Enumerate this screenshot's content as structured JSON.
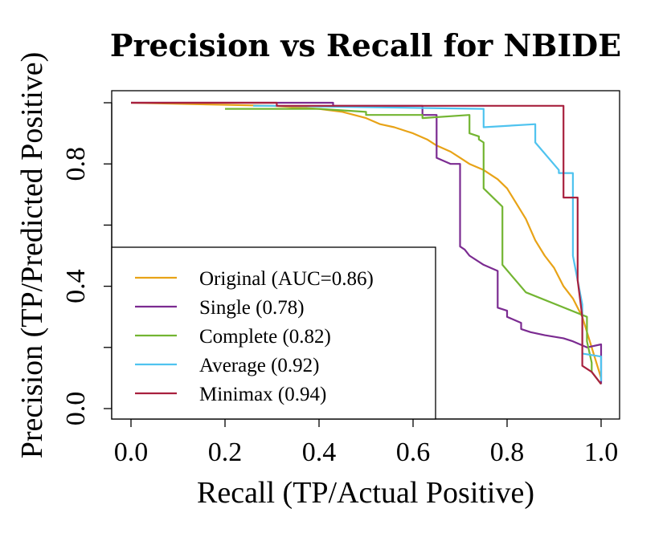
{
  "chart_data": {
    "type": "line",
    "title": "Precision vs Recall for NBIDE",
    "xlabel": "Recall (TP/Actual Positive)",
    "ylabel": "Precision (TP/Predicted Positive)",
    "xlim": [
      0.0,
      1.0
    ],
    "ylim": [
      0.0,
      1.0
    ],
    "x_ticks": [
      0.0,
      0.2,
      0.4,
      0.6,
      0.8,
      1.0
    ],
    "x_tick_labels": [
      "0.0",
      "0.2",
      "0.4",
      "0.6",
      "0.8",
      "1.0"
    ],
    "y_ticks": [
      0.0,
      0.2,
      0.4,
      0.6,
      0.8,
      1.0
    ],
    "y_tick_labels": [
      "0.0",
      "",
      "0.4",
      "",
      "0.8",
      ""
    ],
    "grid": false,
    "legend_position": "bottom-left",
    "series": [
      {
        "name": "Original (AUC=0.86)",
        "color": "#e8a317",
        "x": [
          0.0,
          0.3,
          0.4,
          0.45,
          0.5,
          0.53,
          0.56,
          0.6,
          0.63,
          0.65,
          0.68,
          0.7,
          0.72,
          0.75,
          0.78,
          0.8,
          0.82,
          0.84,
          0.86,
          0.88,
          0.9,
          0.92,
          0.94,
          0.96,
          0.98,
          1.0
        ],
        "y": [
          1.0,
          0.99,
          0.98,
          0.97,
          0.95,
          0.93,
          0.92,
          0.9,
          0.88,
          0.86,
          0.84,
          0.82,
          0.8,
          0.78,
          0.75,
          0.72,
          0.67,
          0.62,
          0.55,
          0.5,
          0.46,
          0.4,
          0.36,
          0.3,
          0.2,
          0.1
        ]
      },
      {
        "name": "Single (0.78)",
        "color": "#7b2b91",
        "x": [
          0.0,
          0.43,
          0.43,
          0.62,
          0.62,
          0.65,
          0.65,
          0.65,
          0.68,
          0.68,
          0.7,
          0.7,
          0.71,
          0.71,
          0.72,
          0.72,
          0.75,
          0.75,
          0.78,
          0.78,
          0.8,
          0.8,
          0.83,
          0.83,
          0.85,
          0.85,
          0.88,
          0.88,
          0.92,
          0.92,
          0.94,
          0.94,
          0.97,
          0.97,
          1.0,
          1.0
        ],
        "y": [
          1.0,
          1.0,
          0.99,
          0.99,
          0.96,
          0.96,
          0.93,
          0.82,
          0.8,
          0.8,
          0.8,
          0.53,
          0.52,
          0.52,
          0.5,
          0.5,
          0.47,
          0.47,
          0.45,
          0.33,
          0.32,
          0.3,
          0.28,
          0.26,
          0.25,
          0.25,
          0.24,
          0.24,
          0.23,
          0.23,
          0.22,
          0.22,
          0.2,
          0.2,
          0.21,
          0.08
        ]
      },
      {
        "name": "Complete (0.82)",
        "color": "#73b532",
        "x": [
          0.2,
          0.2,
          0.4,
          0.5,
          0.5,
          0.6,
          0.62,
          0.62,
          0.72,
          0.72,
          0.74,
          0.74,
          0.75,
          0.75,
          0.79,
          0.79,
          0.79,
          0.84,
          0.97,
          0.97,
          0.98,
          0.98,
          1.0
        ],
        "y": [
          0.98,
          0.98,
          0.98,
          0.97,
          0.96,
          0.96,
          0.96,
          0.95,
          0.96,
          0.9,
          0.89,
          0.88,
          0.87,
          0.72,
          0.66,
          0.48,
          0.47,
          0.38,
          0.3,
          0.22,
          0.15,
          0.12,
          0.08
        ]
      },
      {
        "name": "Average (0.92)",
        "color": "#4fc3ef",
        "x": [
          0.26,
          0.26,
          0.3,
          0.3,
          0.75,
          0.75,
          0.86,
          0.86,
          0.91,
          0.91,
          0.94,
          0.94,
          0.94,
          0.96,
          0.96,
          1.0,
          1.0
        ],
        "y": [
          0.99,
          0.99,
          0.99,
          0.99,
          0.98,
          0.92,
          0.93,
          0.87,
          0.78,
          0.77,
          0.77,
          0.72,
          0.5,
          0.34,
          0.18,
          0.17,
          0.09
        ]
      },
      {
        "name": "Minimax (0.94)",
        "color": "#a8203e",
        "x": [
          0.0,
          0.31,
          0.31,
          0.92,
          0.92,
          0.95,
          0.95,
          0.96,
          0.96,
          0.96,
          0.98,
          1.0
        ],
        "y": [
          1.0,
          1.0,
          0.99,
          0.99,
          0.69,
          0.69,
          0.42,
          0.3,
          0.18,
          0.14,
          0.12,
          0.08
        ]
      }
    ]
  }
}
